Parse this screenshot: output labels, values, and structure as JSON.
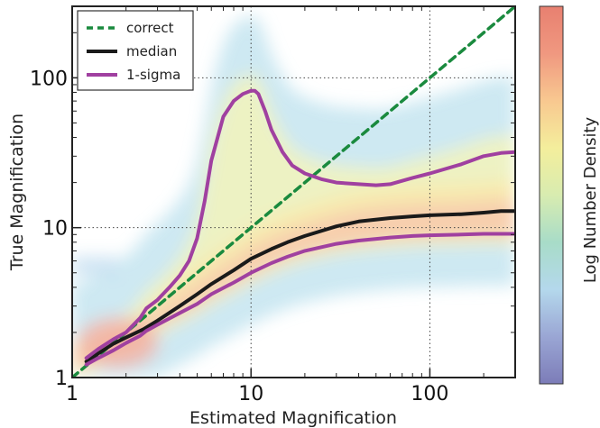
{
  "chart_data": {
    "type": "line",
    "title": "",
    "xlabel": "Estimated Magnification",
    "ylabel": "True Magnification",
    "xscale": "log",
    "yscale": "log",
    "xlim": [
      1,
      300
    ],
    "ylim": [
      1,
      300
    ],
    "x_ticks": [
      {
        "value": 1,
        "label": "1"
      },
      {
        "value": 10,
        "label": "10"
      },
      {
        "value": 100,
        "label": "100"
      }
    ],
    "y_ticks": [
      {
        "value": 1,
        "label": "1"
      },
      {
        "value": 10,
        "label": "10"
      },
      {
        "value": 100,
        "label": "100"
      }
    ],
    "grid": true,
    "legend_position": "top-left",
    "colorbar": {
      "label": "Log Number Density",
      "colors": [
        "#7c7cb8",
        "#9aa6d4",
        "#b4d8ec",
        "#a8dcc8",
        "#d8ecb0",
        "#f4ee9c",
        "#f8c890",
        "#f09880",
        "#e88070"
      ]
    },
    "background_density": "2D histogram of true vs estimated magnification, densest near the diagonal at low magnification",
    "series": [
      {
        "name": "correct",
        "color": "#1a8a3e",
        "style": "dashed",
        "x": [
          1,
          300
        ],
        "y": [
          1,
          300
        ]
      },
      {
        "name": "median",
        "color": "#1a1a1a",
        "style": "solid",
        "x": [
          1.2,
          1.4,
          1.7,
          2.0,
          2.5,
          3.0,
          4.0,
          5.0,
          6.0,
          8.0,
          10,
          13,
          16,
          20,
          30,
          40,
          60,
          80,
          100,
          150,
          200,
          250,
          300
        ],
        "y": [
          1.28,
          1.45,
          1.68,
          1.85,
          2.1,
          2.4,
          3.0,
          3.6,
          4.2,
          5.2,
          6.2,
          7.2,
          8.0,
          8.8,
          10.2,
          11.0,
          11.6,
          11.9,
          12.1,
          12.3,
          12.6,
          12.9,
          12.9
        ]
      },
      {
        "name": "1-sigma",
        "color": "#a040a0",
        "style": "solid",
        "x": [
          1.2,
          1.4,
          1.7,
          2.0,
          2.4,
          2.6,
          3.0,
          3.5,
          4.0,
          4.5,
          5.0,
          5.5,
          6.0,
          7.0,
          8.0,
          9.0,
          10,
          10.5,
          11,
          12,
          13,
          15,
          17,
          20,
          25,
          30,
          40,
          50,
          60,
          80,
          100,
          150,
          200,
          250,
          300
        ],
        "y": [
          1.35,
          1.55,
          1.8,
          2.0,
          2.5,
          2.9,
          3.3,
          4.0,
          4.8,
          6.0,
          8.5,
          15,
          28,
          55,
          70,
          78,
          82,
          82,
          78,
          60,
          45,
          32,
          26,
          23,
          21,
          20,
          19.5,
          19.2,
          19.5,
          21.5,
          23,
          26.5,
          30,
          31.5,
          32
        ]
      },
      {
        "name": "1-sigma-lower",
        "color": "#a040a0",
        "style": "solid",
        "x": [
          1.2,
          1.4,
          1.7,
          2.0,
          2.4,
          2.6,
          3.0,
          4.0,
          5.0,
          6.0,
          8.0,
          10,
          13,
          16,
          20,
          30,
          40,
          60,
          80,
          100,
          150,
          200,
          250,
          300
        ],
        "y": [
          1.22,
          1.35,
          1.52,
          1.7,
          1.9,
          2.05,
          2.25,
          2.7,
          3.1,
          3.6,
          4.3,
          5.0,
          5.8,
          6.4,
          7.0,
          7.8,
          8.2,
          8.6,
          8.8,
          8.9,
          9.0,
          9.1,
          9.1,
          9.1
        ]
      }
    ]
  }
}
